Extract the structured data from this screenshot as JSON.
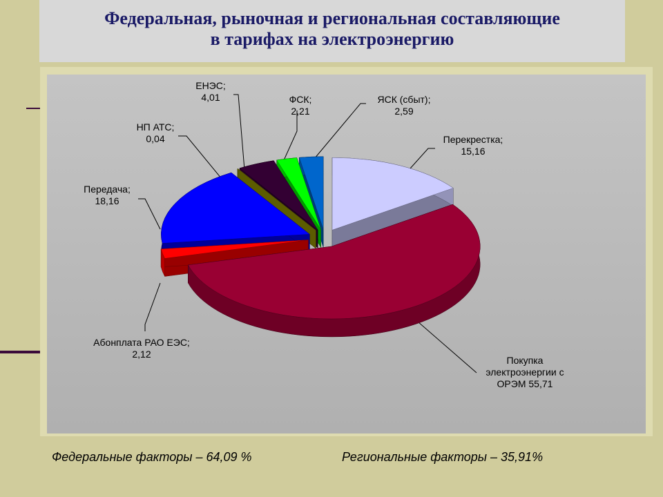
{
  "chart_data": {
    "type": "pie",
    "title": [
      "Федеральная, рыночная и региональная составляющие",
      "в тарифах  на электроэнергию"
    ],
    "categories": [
      "Покупка электроэнергии с ОРЭМ",
      "Абонплата РАО ЕЭС;",
      "Передача;",
      "НП АТС;",
      "ЕНЭС;",
      "ФСК;",
      "ЯСК (сбыт);",
      "Перекрестка;"
    ],
    "values": [
      55.71,
      2.12,
      18.16,
      0.04,
      4.01,
      2.21,
      2.59,
      15.16
    ],
    "value_labels": [
      "55,71",
      "2,12",
      "18,16",
      "0,04",
      "4,01",
      "2,21",
      "2,59",
      "15,16"
    ],
    "colors": [
      "#990033",
      "#ff0000",
      "#0000ff",
      "#999900",
      "#330033",
      "#00ff00",
      "#0066cc",
      "#ccccff"
    ],
    "footnotes": [
      "Федеральные факторы – 64,09 %",
      "Региональные факторы – 35,91%"
    ]
  }
}
